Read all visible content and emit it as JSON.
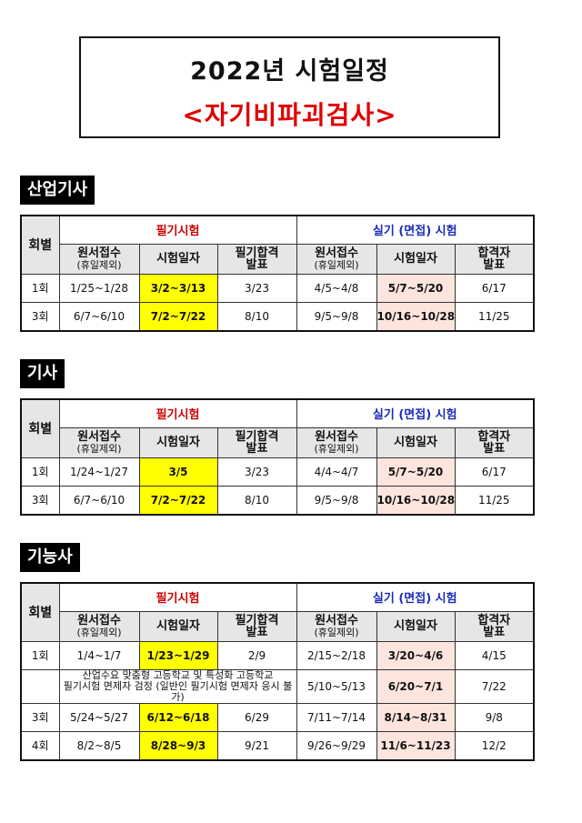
{
  "title": {
    "line1": "2022년  시험일정",
    "line2": "<자기비파괴검사>"
  },
  "header": {
    "round": "회별",
    "written": "필기시험",
    "practical": "실기 (면접) 시험",
    "cols": [
      {
        "main": "원서접수",
        "sub": "(휴일제외)"
      },
      {
        "main": "시험일자",
        "sub": ""
      },
      {
        "main": "필기합격",
        "sub": "발표"
      },
      {
        "main": "원서접수",
        "sub": "(휴일제외)"
      },
      {
        "main": "시험일자",
        "sub": ""
      },
      {
        "main": "합격자",
        "sub": "발표"
      }
    ]
  },
  "sections": [
    {
      "label": "산업기사",
      "rows": [
        {
          "round": "1회",
          "cells": [
            "1/25~1/28",
            "3/2~3/13",
            "3/23",
            "4/5~4/8",
            "5/7~5/20",
            "6/17"
          ]
        },
        {
          "round": "3회",
          "cells": [
            "6/7~6/10",
            "7/2~7/22",
            "8/10",
            "9/5~9/8",
            "10/16~10/28",
            "11/25"
          ]
        }
      ]
    },
    {
      "label": "기사",
      "rows": [
        {
          "round": "1회",
          "cells": [
            "1/24~1/27",
            "3/5",
            "3/23",
            "4/4~4/7",
            "5/7~5/20",
            "6/17"
          ]
        },
        {
          "round": "3회",
          "cells": [
            "6/7~6/10",
            "7/2~7/22",
            "8/10",
            "9/5~9/8",
            "10/16~10/28",
            "11/25"
          ]
        }
      ]
    },
    {
      "label": "기능사",
      "rows": [
        {
          "round": "1회",
          "cells": [
            "1/4~1/7",
            "1/23~1/29",
            "2/9",
            "2/15~2/18",
            "3/20~4/6",
            "4/15"
          ]
        },
        {
          "round": "",
          "note": "산업수요 맞춤형 고등학교 및 특성화 고등학교\n필기시험 면제자 검정 (일반인 필기시험 면제자 응시 불가)",
          "cells": [
            "5/10~5/13",
            "6/20~7/1",
            "7/22"
          ]
        },
        {
          "round": "3회",
          "cells": [
            "5/24~5/27",
            "6/12~6/18",
            "6/29",
            "7/11~7/14",
            "8/14~8/31",
            "9/8"
          ]
        },
        {
          "round": "4회",
          "cells": [
            "8/2~8/5",
            "8/28~9/3",
            "9/21",
            "9/26~9/29",
            "11/6~11/23",
            "12/2"
          ]
        }
      ]
    }
  ],
  "colors": {
    "written_title": "#d00000",
    "practical_title": "#1a2bb8",
    "written_date_highlight": "#ffff00",
    "practical_date_highlight": "#fde5de"
  }
}
